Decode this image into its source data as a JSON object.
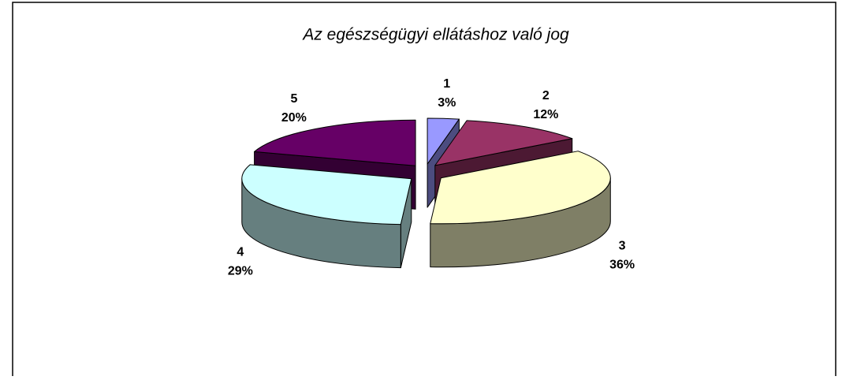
{
  "chart_data": {
    "type": "pie",
    "title": "Az egészségügyi ellátáshoz való jog",
    "categories": [
      "1",
      "2",
      "3",
      "4",
      "5"
    ],
    "values": [
      3,
      12,
      36,
      29,
      20
    ],
    "value_labels": [
      "3%",
      "12%",
      "36%",
      "29%",
      "20%"
    ],
    "colors": [
      "#9999ff",
      "#993366",
      "#ffffcc",
      "#ccffff",
      "#660066"
    ]
  }
}
